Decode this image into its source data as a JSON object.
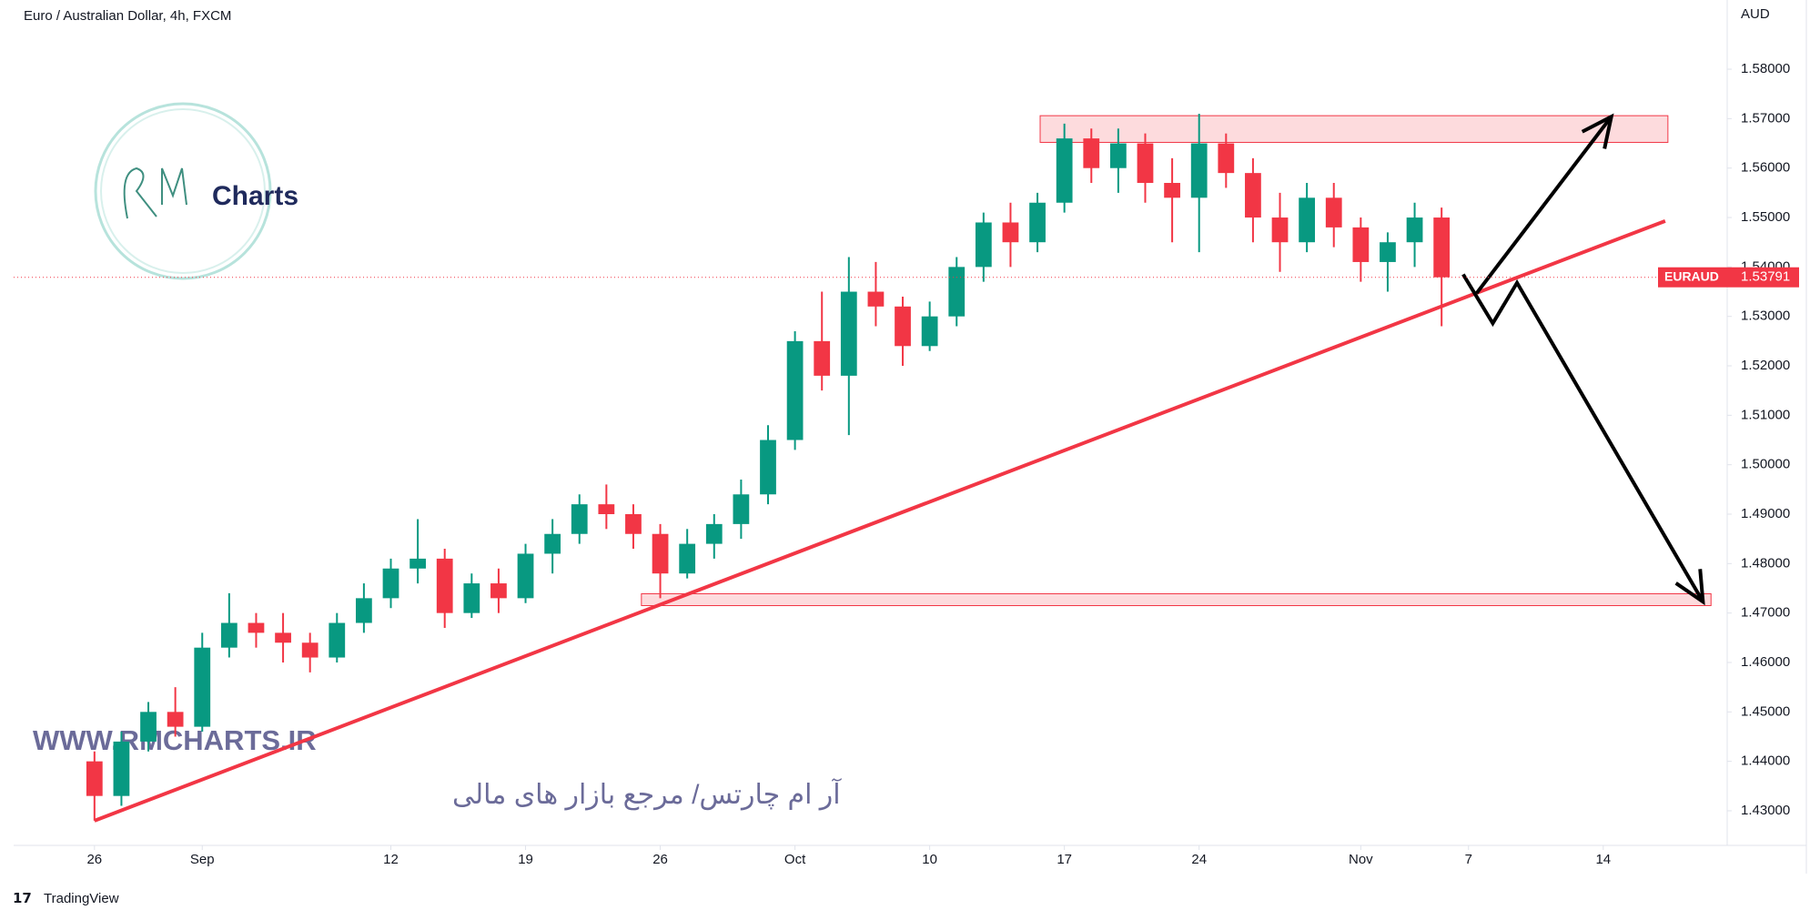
{
  "chart_data": {
    "type": "candlestick",
    "title": "Euro / Australian Dollar, 4h, FXCM",
    "currency_label": "AUD",
    "symbol_label": "EURAUD",
    "last_price": 1.53791,
    "up_color": "#089981",
    "down_color": "#f23645",
    "open": [
      1.44,
      1.433,
      1.444,
      1.45,
      1.447,
      1.463,
      1.468,
      1.466,
      1.464,
      1.461,
      1.468,
      1.473,
      1.479,
      1.481,
      1.47,
      1.476,
      1.473,
      1.482,
      1.486,
      1.492,
      1.49,
      1.486,
      1.478,
      1.484,
      1.488,
      1.494,
      1.505,
      1.525,
      1.518,
      1.535,
      1.532,
      1.524,
      1.53,
      1.54,
      1.549,
      1.545,
      1.553,
      1.566,
      1.56,
      1.565,
      1.557,
      1.554,
      1.565,
      1.559,
      1.55,
      1.545,
      1.554,
      1.548,
      1.541,
      1.545,
      1.55
    ],
    "high": [
      1.442,
      1.446,
      1.452,
      1.455,
      1.466,
      1.474,
      1.47,
      1.47,
      1.466,
      1.47,
      1.476,
      1.481,
      1.489,
      1.483,
      1.478,
      1.479,
      1.484,
      1.489,
      1.494,
      1.496,
      1.492,
      1.488,
      1.487,
      1.49,
      1.497,
      1.508,
      1.527,
      1.535,
      1.542,
      1.541,
      1.534,
      1.533,
      1.542,
      1.551,
      1.553,
      1.555,
      1.569,
      1.568,
      1.568,
      1.567,
      1.562,
      1.571,
      1.567,
      1.562,
      1.555,
      1.557,
      1.557,
      1.55,
      1.547,
      1.553,
      1.552
    ],
    "low": [
      1.428,
      1.431,
      1.442,
      1.445,
      1.446,
      1.461,
      1.463,
      1.46,
      1.458,
      1.46,
      1.466,
      1.471,
      1.476,
      1.467,
      1.469,
      1.47,
      1.472,
      1.478,
      1.484,
      1.487,
      1.483,
      1.473,
      1.477,
      1.481,
      1.485,
      1.492,
      1.503,
      1.515,
      1.506,
      1.528,
      1.52,
      1.523,
      1.528,
      1.537,
      1.54,
      1.543,
      1.551,
      1.557,
      1.555,
      1.553,
      1.545,
      1.543,
      1.556,
      1.545,
      1.539,
      1.543,
      1.544,
      1.537,
      1.535,
      1.54,
      1.528
    ],
    "close": [
      1.433,
      1.444,
      1.45,
      1.447,
      1.463,
      1.468,
      1.466,
      1.464,
      1.461,
      1.468,
      1.473,
      1.479,
      1.481,
      1.47,
      1.476,
      1.473,
      1.482,
      1.486,
      1.492,
      1.49,
      1.486,
      1.478,
      1.484,
      1.488,
      1.494,
      1.505,
      1.525,
      1.518,
      1.535,
      1.532,
      1.524,
      1.53,
      1.54,
      1.549,
      1.545,
      1.553,
      1.566,
      1.56,
      1.565,
      1.557,
      1.554,
      1.565,
      1.559,
      1.55,
      1.545,
      1.554,
      1.548,
      1.541,
      1.545,
      1.55,
      1.53791
    ],
    "xlim": [
      -3.0,
      60.6
    ],
    "xticks": [
      {
        "value": 0,
        "label": "26"
      },
      {
        "value": 4,
        "label": "Sep"
      },
      {
        "value": 11,
        "label": "12"
      },
      {
        "value": 16,
        "label": "19"
      },
      {
        "value": 21,
        "label": "26"
      },
      {
        "value": 26,
        "label": "Oct"
      },
      {
        "value": 31,
        "label": "10"
      },
      {
        "value": 36,
        "label": "17"
      },
      {
        "value": 41,
        "label": "24"
      },
      {
        "value": 47,
        "label": "Nov"
      },
      {
        "value": 51,
        "label": "7"
      },
      {
        "value": 56,
        "label": "14"
      }
    ],
    "ylim": [
      1.423,
      1.594
    ],
    "yticks": [
      {
        "value": 1.43,
        "label": "1.43000"
      },
      {
        "value": 1.44,
        "label": "1.44000"
      },
      {
        "value": 1.45,
        "label": "1.45000"
      },
      {
        "value": 1.46,
        "label": "1.46000"
      },
      {
        "value": 1.47,
        "label": "1.47000"
      },
      {
        "value": 1.48,
        "label": "1.48000"
      },
      {
        "value": 1.49,
        "label": "1.49000"
      },
      {
        "value": 1.5,
        "label": "1.50000"
      },
      {
        "value": 1.51,
        "label": "1.51000"
      },
      {
        "value": 1.52,
        "label": "1.52000"
      },
      {
        "value": 1.53,
        "label": "1.53000"
      },
      {
        "value": 1.54,
        "label": "1.54000"
      },
      {
        "value": 1.55,
        "label": "1.55000"
      },
      {
        "value": 1.56,
        "label": "1.56000"
      },
      {
        "value": 1.57,
        "label": "1.57000"
      },
      {
        "value": 1.58,
        "label": "1.58000"
      }
    ],
    "grid": false,
    "zones": [
      {
        "x": [
          35.1,
          58.4
        ],
        "y": [
          1.5652,
          1.5706
        ]
      },
      {
        "x": [
          20.3,
          60.0
        ],
        "y": [
          1.4715,
          1.4739
        ]
      }
    ],
    "zone_color": "#f23645",
    "trendline": {
      "x": [
        0,
        58.3
      ],
      "y": [
        1.428,
        1.5493
      ],
      "color": "#f23645"
    },
    "arrows": [
      {
        "x": [
          50.8,
          51.9,
          52.8,
          59.7
        ],
        "y": [
          1.5385,
          1.5286,
          1.5368,
          1.4723
        ]
      },
      {
        "x": [
          51.3,
          56.3
        ],
        "y": [
          1.5347,
          1.5704
        ]
      }
    ],
    "arrow_color": "#000000"
  },
  "watermark": {
    "logo": "Charts",
    "url": "WWW.RMCHARTS.IR",
    "tagline": "آر ام چارتس/ مرجع بازار های مالی"
  },
  "footer": "TradingView"
}
